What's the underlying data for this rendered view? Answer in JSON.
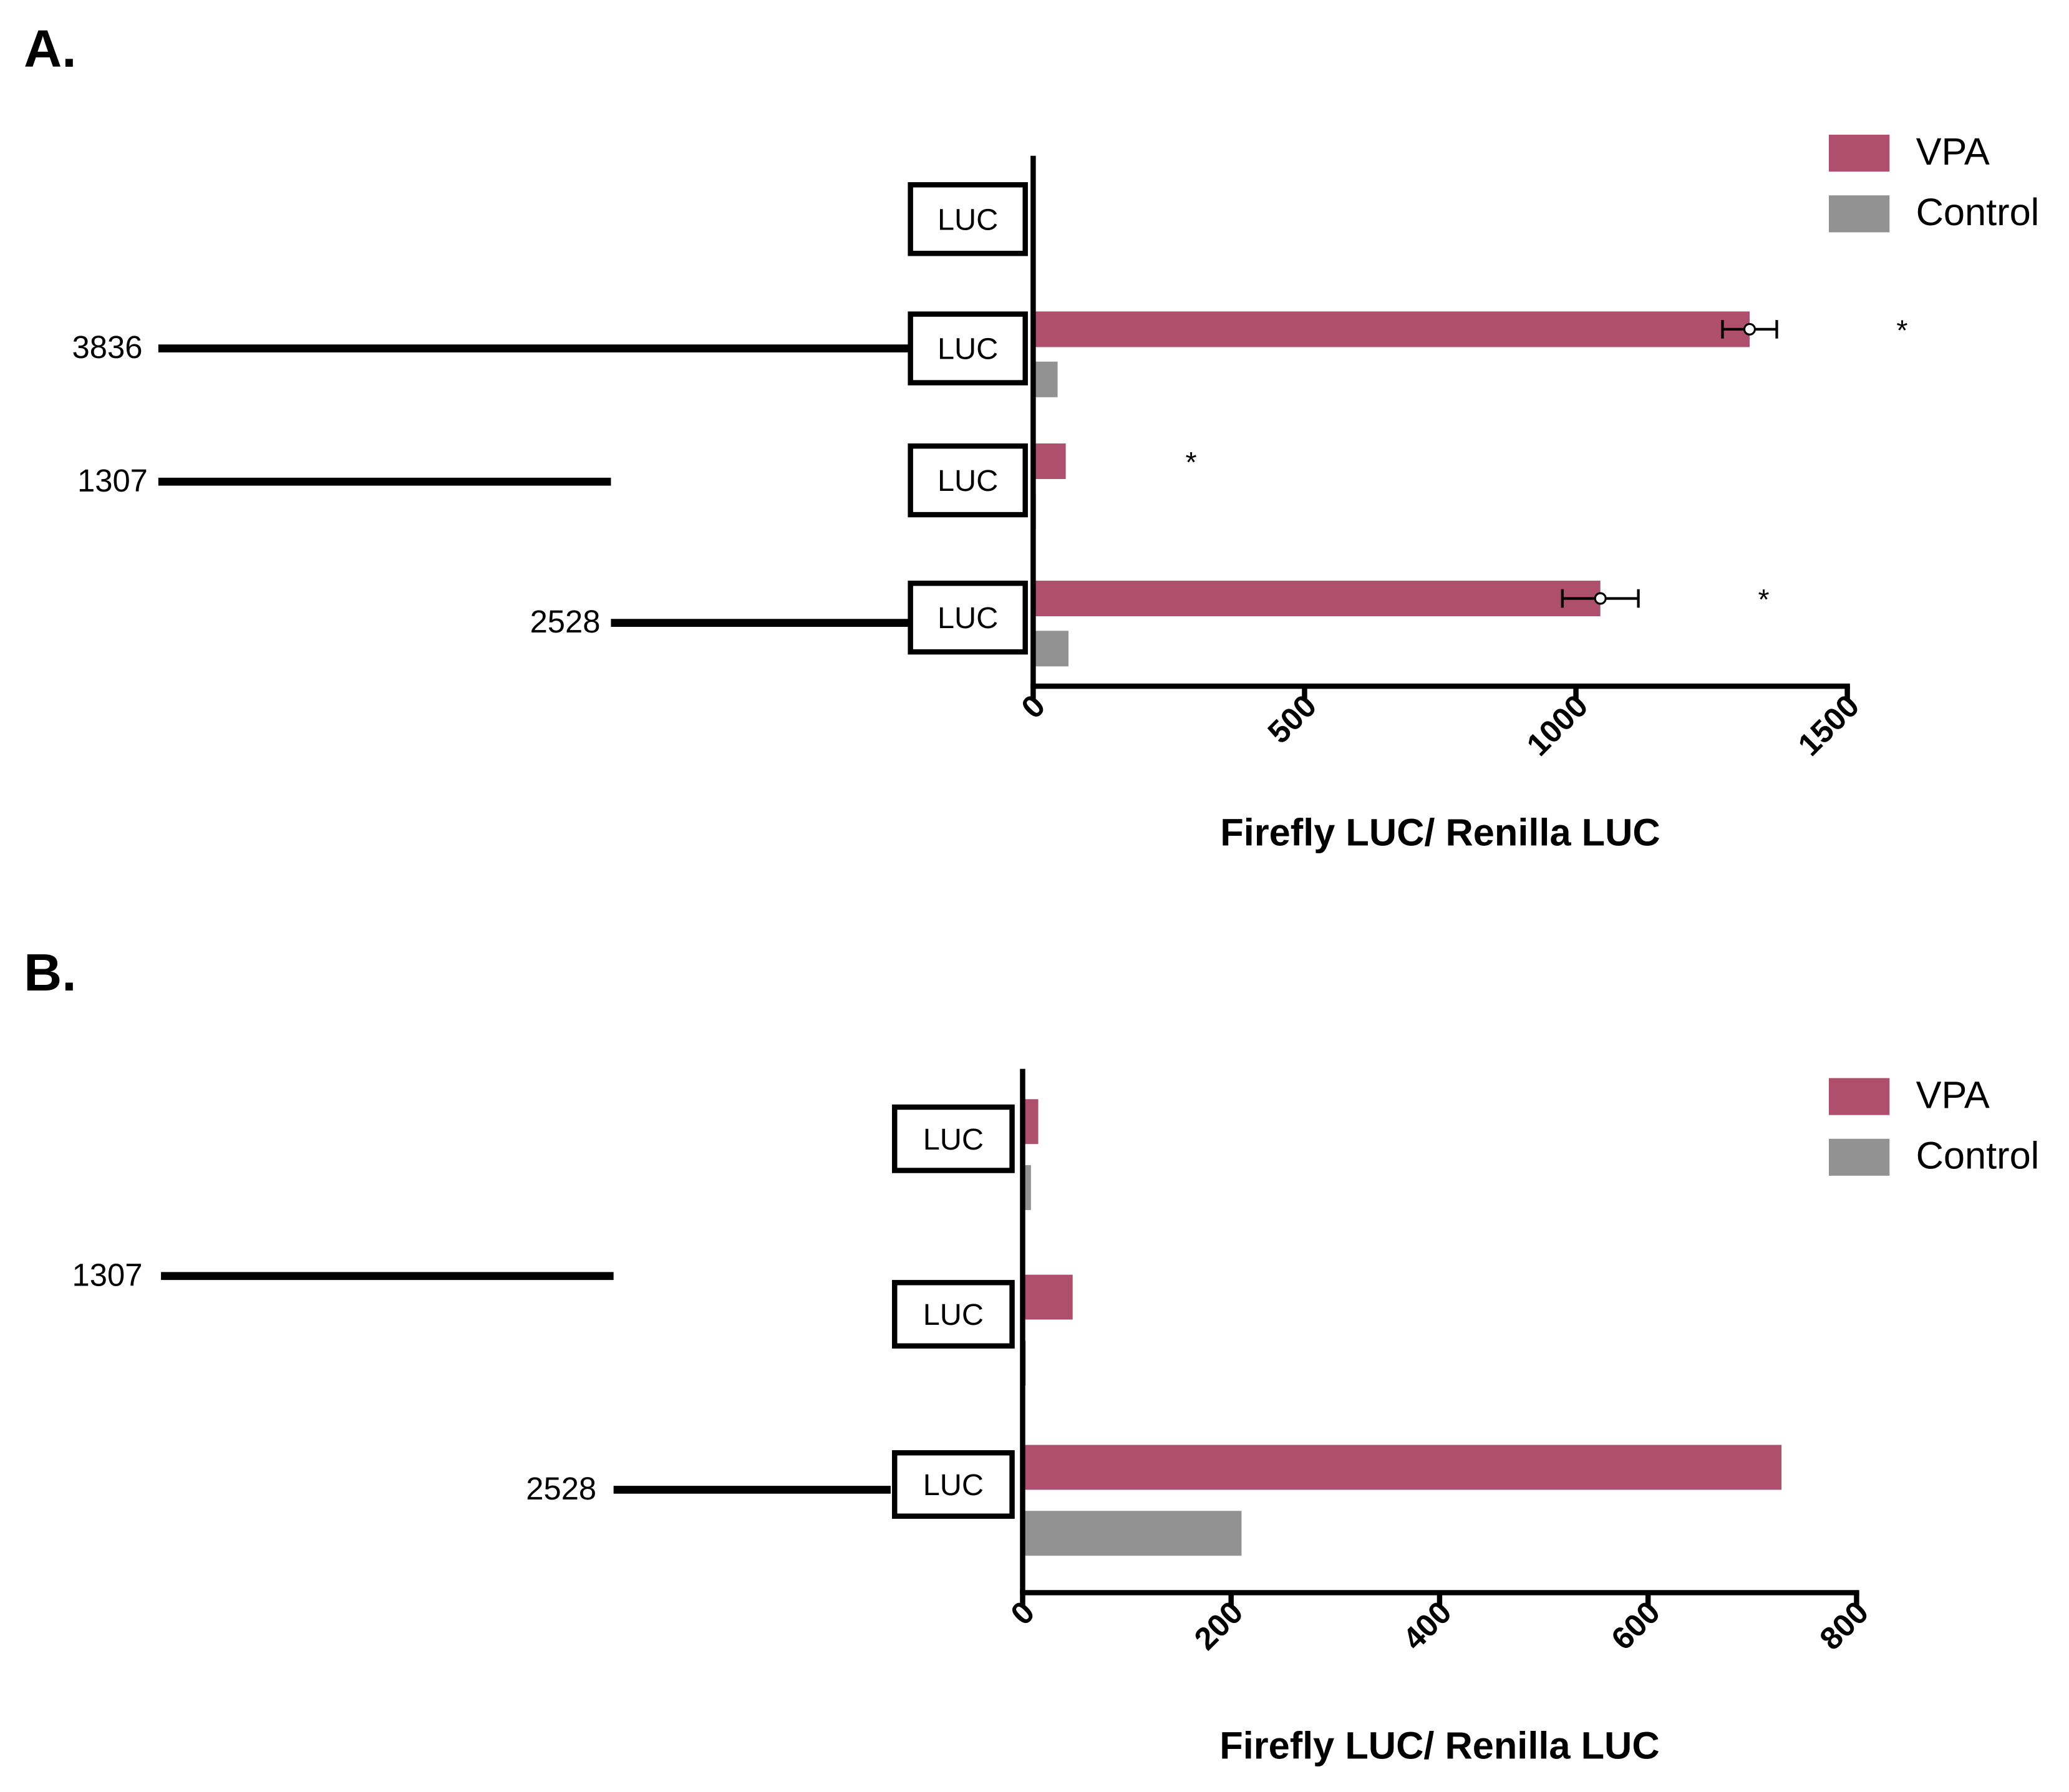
{
  "chart_data": [
    {
      "type": "bar",
      "panel": "A.",
      "orientation": "horizontal",
      "box_label": "LUC",
      "categories": [
        null,
        "3836",
        "1307",
        "2528"
      ],
      "series": [
        {
          "name": "VPA",
          "color": "#ad4f6d",
          "values": [
            2,
            1320,
            60,
            1045
          ],
          "errors": [
            null,
            50,
            null,
            70
          ]
        },
        {
          "name": "Control",
          "color": "#929292",
          "values": [
            3,
            45,
            5,
            65
          ]
        }
      ],
      "significance": [
        null,
        "*",
        "*",
        "*"
      ],
      "xlim": [
        0,
        1500
      ],
      "xticks": [
        0,
        500,
        1000,
        1500
      ],
      "xlabel": "Firefly LUC/ Renilla LUC",
      "legend": "upper right"
    },
    {
      "type": "bar",
      "panel": "B.",
      "orientation": "horizontal",
      "box_label": "LUC",
      "categories": [
        null,
        "1307",
        "2528"
      ],
      "series": [
        {
          "name": "VPA",
          "color": "#ad4f6d",
          "values": [
            15,
            48,
            728
          ]
        },
        {
          "name": "Control",
          "color": "#929292",
          "values": [
            8,
            3,
            210
          ]
        }
      ],
      "xlim": [
        0,
        800
      ],
      "xticks": [
        0,
        200,
        400,
        600,
        800
      ],
      "xlabel": "Firefly LUC/ Renilla LUC",
      "legend": "upper right"
    }
  ]
}
